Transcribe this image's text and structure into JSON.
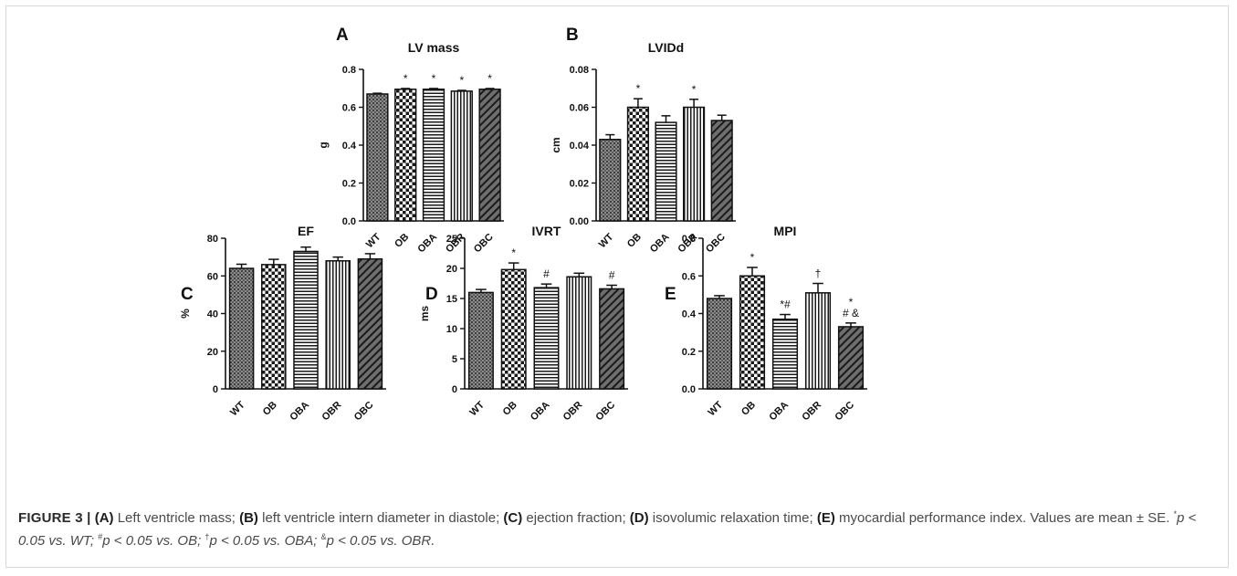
{
  "chart_data": [
    {
      "panel": "A",
      "type": "bar",
      "title": "LV mass",
      "xlabel": "",
      "ylabel": "g",
      "categories": [
        "WT",
        "OB",
        "OBA",
        "OBR",
        "OBC"
      ],
      "values": [
        0.67,
        0.695,
        0.695,
        0.685,
        0.695
      ],
      "errors": [
        0.004,
        0.004,
        0.004,
        0.004,
        0.004
      ],
      "ylim": [
        0,
        0.8
      ],
      "yticks": [
        "0.0",
        "0.2",
        "0.4",
        "0.6",
        "0.8"
      ],
      "annotations": [
        "",
        "*",
        "*",
        "*",
        "*"
      ]
    },
    {
      "panel": "B",
      "type": "bar",
      "title": "LVIDd",
      "xlabel": "",
      "ylabel": "cm",
      "categories": [
        "WT",
        "OB",
        "OBA",
        "OBR",
        "OBC"
      ],
      "values": [
        0.043,
        0.06,
        0.052,
        0.06,
        0.053
      ],
      "errors": [
        0.0025,
        0.0045,
        0.0035,
        0.0042,
        0.0028
      ],
      "ylim": [
        0,
        0.08
      ],
      "yticks": [
        "0.00",
        "0.02",
        "0.04",
        "0.06",
        "0.08"
      ],
      "annotations": [
        "",
        "*",
        "",
        "*",
        ""
      ]
    },
    {
      "panel": "C",
      "type": "bar",
      "title": "EF",
      "xlabel": "",
      "ylabel": "%",
      "categories": [
        "WT",
        "OB",
        "OBA",
        "OBR",
        "OBC"
      ],
      "values": [
        64,
        66,
        73,
        68,
        69
      ],
      "errors": [
        2.2,
        2.8,
        2.3,
        2.0,
        2.8
      ],
      "ylim": [
        0,
        80
      ],
      "yticks": [
        "0",
        "20",
        "40",
        "60",
        "80"
      ],
      "annotations": [
        "",
        "",
        "",
        "",
        ""
      ]
    },
    {
      "panel": "D",
      "type": "bar",
      "title": "IVRT",
      "xlabel": "",
      "ylabel": "ms",
      "categories": [
        "WT",
        "OB",
        "OBA",
        "OBR",
        "OBC"
      ],
      "values": [
        16,
        19.8,
        16.8,
        18.6,
        16.6
      ],
      "errors": [
        0.5,
        1.1,
        0.6,
        0.6,
        0.6
      ],
      "ylim": [
        0,
        25
      ],
      "yticks": [
        "0",
        "5",
        "10",
        "15",
        "20",
        "25"
      ],
      "annotations": [
        "",
        "*",
        "#",
        "",
        "#"
      ]
    },
    {
      "panel": "E",
      "type": "bar",
      "title": "MPI",
      "xlabel": "",
      "ylabel": "",
      "categories": [
        "WT",
        "OB",
        "OBA",
        "OBR",
        "OBC"
      ],
      "values": [
        0.48,
        0.6,
        0.37,
        0.51,
        0.33
      ],
      "errors": [
        0.015,
        0.045,
        0.025,
        0.05,
        0.02
      ],
      "ylim": [
        0,
        0.8
      ],
      "yticks": [
        "0.0",
        "0.2",
        "0.4",
        "0.6",
        "0.8"
      ],
      "annotations": [
        "",
        "*",
        "*#",
        "†",
        "*|# &"
      ]
    }
  ],
  "caption": {
    "label": "FIGURE 3 |",
    "a_tag": "(A)",
    "a_text": " Left ventricle mass; ",
    "b_tag": "(B)",
    "b_text": " left ventricle intern diameter in diastole; ",
    "c_tag": "(C)",
    "c_text": " ejection fraction; ",
    "d_tag": "(D)",
    "d_text": " isovolumic relaxation time; ",
    "e_tag": "(E)",
    "e_text": " myocardial performance index. Values are mean ± SE. ",
    "stat_1_sym": "*",
    "stat_1_text": "p < 0.05 vs. WT; ",
    "stat_2_sym": "#",
    "stat_2_text": "p < 0.05 vs. OB; ",
    "stat_3_sym": "†",
    "stat_3_text": "p < 0.05 vs. OBA; ",
    "stat_4_sym": "&",
    "stat_4_text": "p < 0.05 vs. OBR."
  },
  "colors": {
    "axis": "#1a1a1a",
    "bar_fill": "#ffffff",
    "bar_stroke": "#111111",
    "caption_text": "#4a4a4a"
  }
}
